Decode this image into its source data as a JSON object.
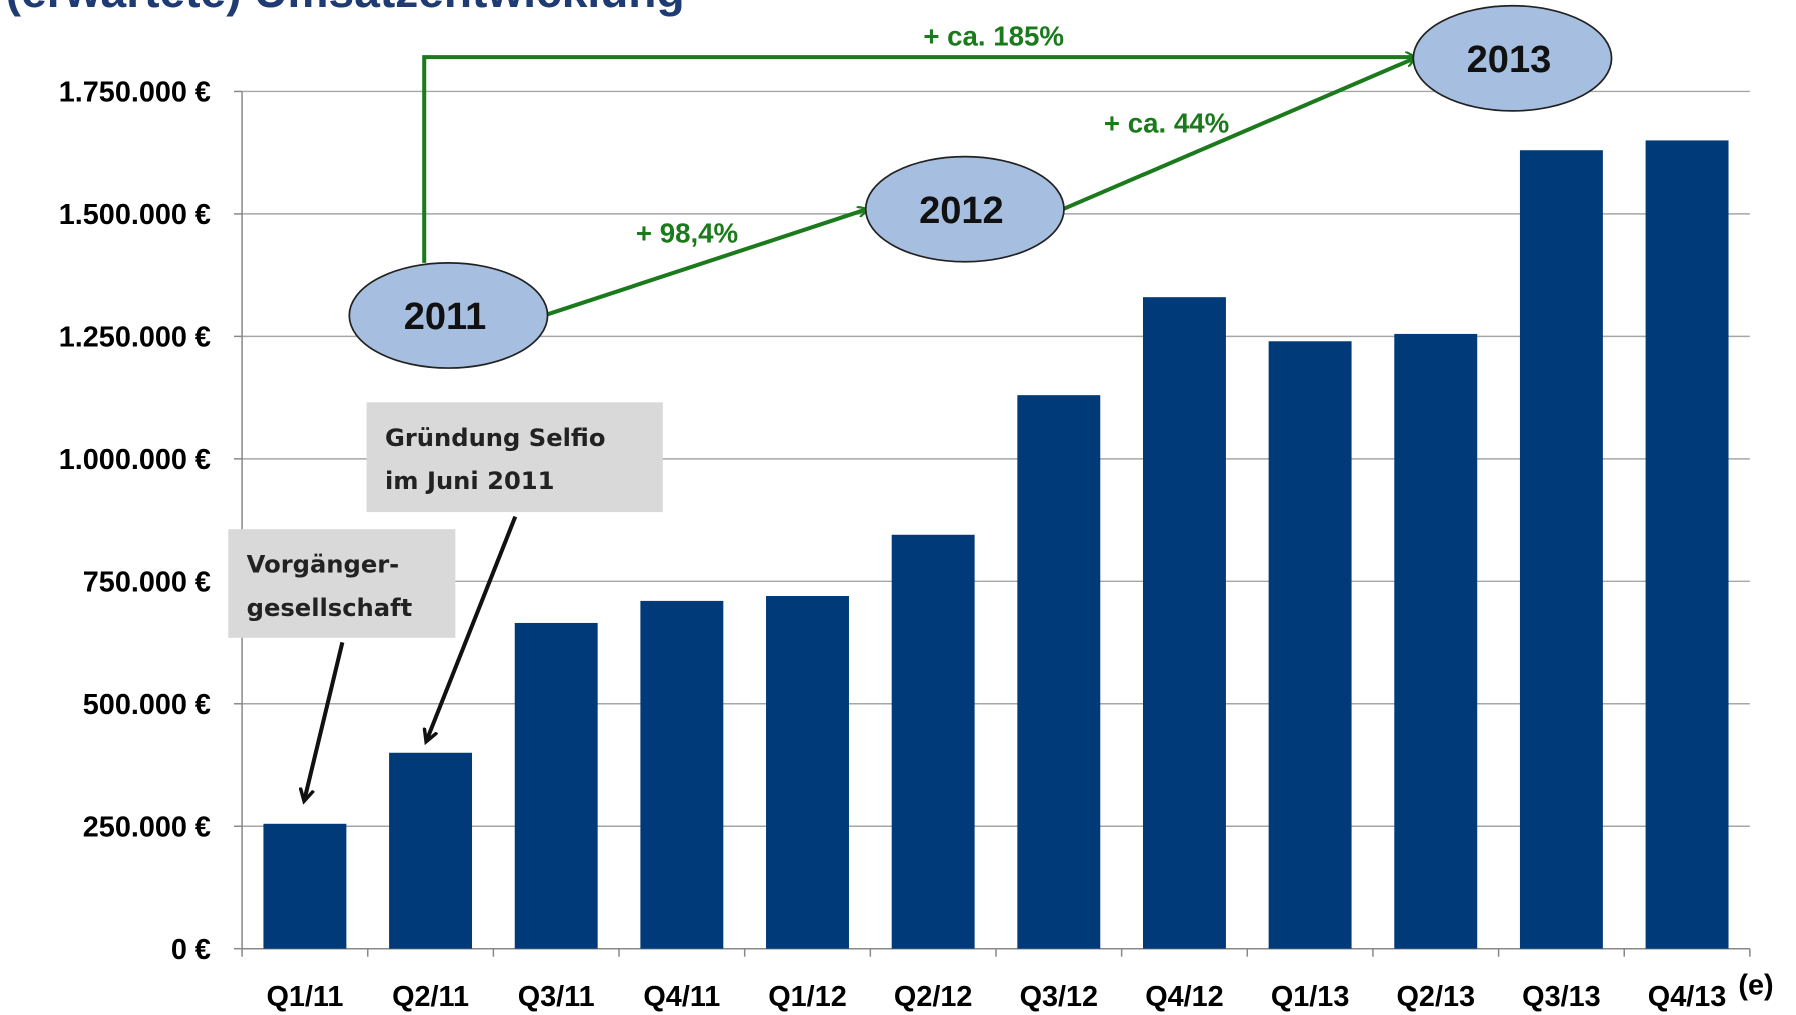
{
  "chart_data": {
    "type": "bar",
    "title": "(erwartete) Umsatzentwicklung",
    "categories": [
      "Q1/11",
      "Q2/11",
      "Q3/11",
      "Q4/11",
      "Q1/12",
      "Q2/12",
      "Q3/12",
      "Q4/12",
      "Q1/13",
      "Q2/13",
      "Q3/13",
      "Q4/13"
    ],
    "values": [
      255000,
      400000,
      665000,
      710000,
      720000,
      845000,
      1130000,
      1330000,
      1240000,
      1255000,
      1630000,
      1650000
    ],
    "color": "#003a78",
    "x_axis_note": "(e)",
    "ylim": [
      0,
      1750000
    ],
    "yticks": [
      {
        "value": 0,
        "label": "0 €"
      },
      {
        "value": 250000,
        "label": "250.000 €"
      },
      {
        "value": 500000,
        "label": "500.000 €"
      },
      {
        "value": 750000,
        "label": "750.000 €"
      },
      {
        "value": 1000000,
        "label": "1.000.000 €"
      },
      {
        "value": 1250000,
        "label": "1.250.000 €"
      },
      {
        "value": 1500000,
        "label": "1.500.000 €"
      },
      {
        "value": 1750000,
        "label": "1.750.000 €"
      }
    ],
    "grid": true,
    "years": [
      "2011",
      "2012",
      "2013"
    ],
    "growth": [
      "+ 98,4%",
      "+ ca. 44%",
      "+ ca. 185%"
    ],
    "callouts": [
      [
        "Gründung Selfio",
        "im Juni 2011"
      ],
      [
        "Vorgänger-",
        "gesellschaft"
      ]
    ]
  }
}
